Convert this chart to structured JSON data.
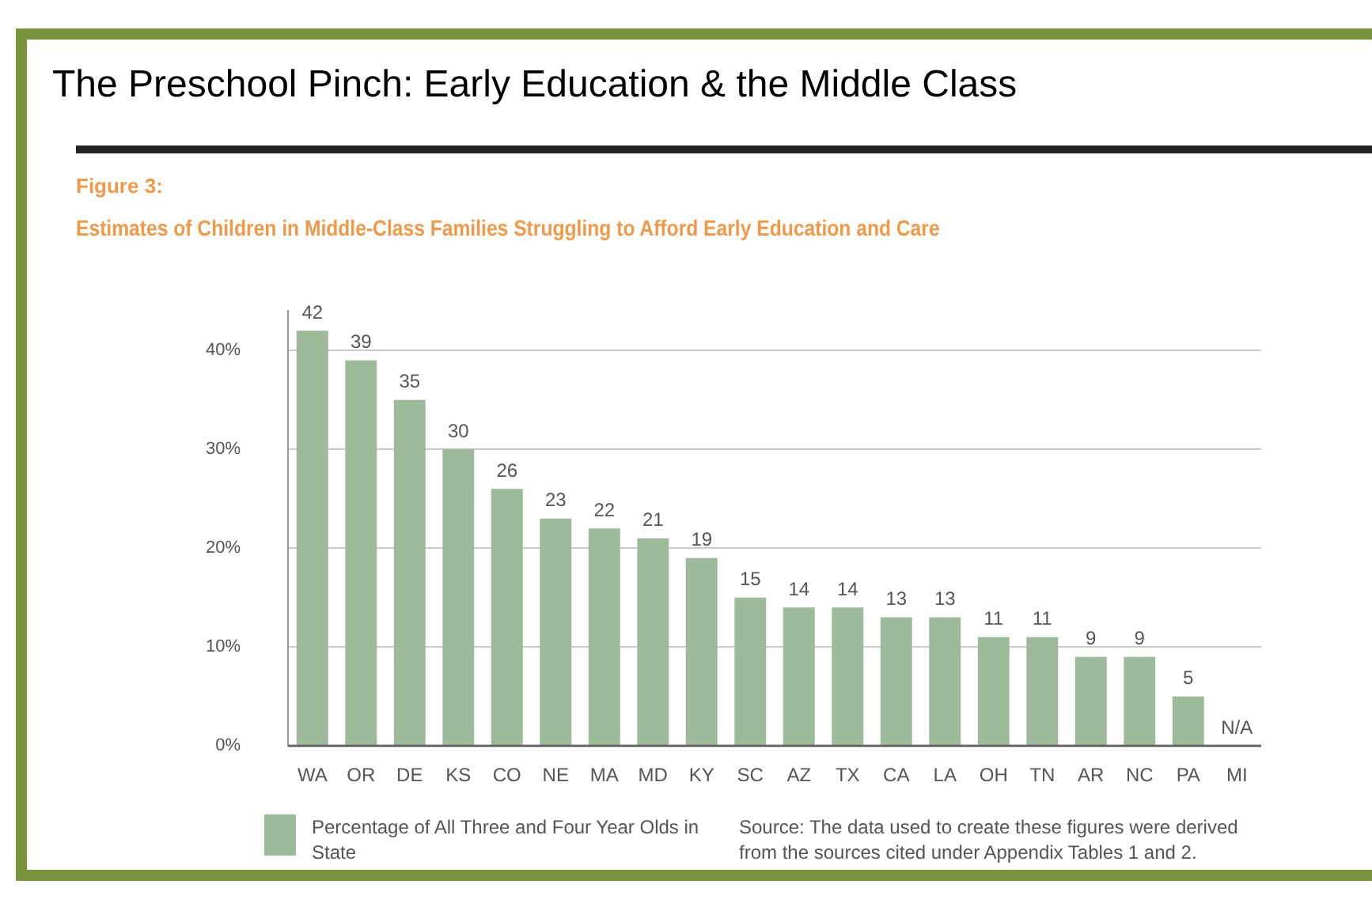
{
  "chart_data": {
    "type": "bar",
    "title": "The Preschool Pinch: Early Education & the Middle Class",
    "subtitle": "Estimates of Children in Middle-Class Families Struggling to Afford Early Education and Care",
    "annotations": [
      "Figure 3:",
      "Source: The data used to create these figures were derived from the sources cited under Appendix Tables 1 and 2."
    ],
    "categories": [
      "WA",
      "OR",
      "DE",
      "KS",
      "CO",
      "NE",
      "MA",
      "MD",
      "KY",
      "SC",
      "AZ",
      "TX",
      "CA",
      "LA",
      "OH",
      "TN",
      "AR",
      "NC",
      "PA",
      "MI"
    ],
    "series": [
      {
        "name": "Percentage of All Three and Four Year Olds in State",
        "color": "#9dbb9a",
        "values": [
          42,
          39,
          35,
          30,
          26,
          23,
          22,
          21,
          19,
          15,
          14,
          14,
          13,
          13,
          11,
          11,
          9,
          9,
          5,
          null
        ],
        "value_labels": [
          "42",
          "39",
          "35",
          "30",
          "26",
          "23",
          "22",
          "21",
          "19",
          "15",
          "14",
          "14",
          "13",
          "13",
          "11",
          "11",
          "9",
          "9",
          "5",
          "N/A"
        ]
      }
    ],
    "ylim": [
      0,
      44
    ],
    "yticks": [
      {
        "value": 0,
        "label": "0%"
      },
      {
        "value": 10,
        "label": "10%"
      },
      {
        "value": 20,
        "label": "20%"
      },
      {
        "value": 30,
        "label": "30%"
      },
      {
        "value": 40,
        "label": "40%"
      }
    ],
    "grid": "y",
    "legend": "bottom left"
  }
}
